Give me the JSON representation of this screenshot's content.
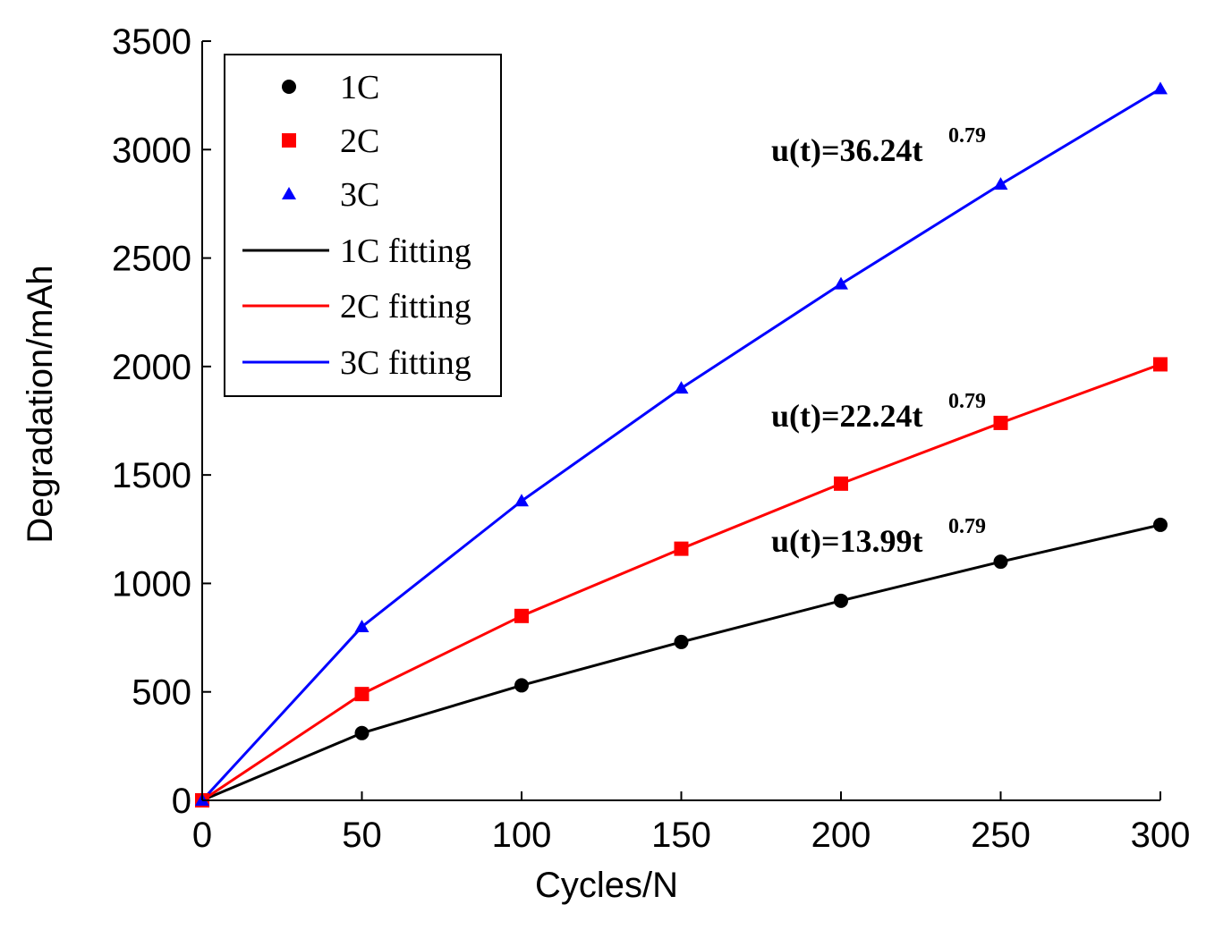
{
  "chart_data": {
    "type": "line",
    "title": "",
    "xlabel": "Cycles/N",
    "ylabel": "Degradation/mAh",
    "xlim": [
      0,
      300
    ],
    "ylim": [
      0,
      3500
    ],
    "x_ticks": [
      "0",
      "50",
      "100",
      "150",
      "200",
      "250",
      "300"
    ],
    "y_ticks": [
      "0",
      "500",
      "1000",
      "1500",
      "2000",
      "2500",
      "3000",
      "3500"
    ],
    "grid": false,
    "legend_position": "top-left",
    "series": [
      {
        "name": "1C",
        "marker": "circle",
        "color": "#000000",
        "x": [
          0,
          50,
          100,
          150,
          200,
          250,
          300
        ],
        "values": [
          0,
          310,
          530,
          730,
          920,
          1100,
          1270
        ]
      },
      {
        "name": "2C",
        "marker": "square",
        "color": "#ff0000",
        "x": [
          0,
          50,
          100,
          150,
          200,
          250,
          300
        ],
        "values": [
          0,
          490,
          850,
          1160,
          1460,
          1740,
          2010
        ]
      },
      {
        "name": "3C",
        "marker": "triangle",
        "color": "#0000ff",
        "x": [
          0,
          50,
          100,
          150,
          200,
          250,
          300
        ],
        "values": [
          0,
          800,
          1380,
          1900,
          2380,
          2840,
          3280
        ]
      }
    ],
    "fits": [
      {
        "name": "1C fitting",
        "color": "#000000",
        "coef": 13.99,
        "exponent": 0.79,
        "eq_prefix": "u(t)=13.99t",
        "eq_exp": "0.79"
      },
      {
        "name": "2C fitting",
        "color": "#ff0000",
        "coef": 22.24,
        "exponent": 0.79,
        "eq_prefix": "u(t)=22.24t",
        "eq_exp": "0.79"
      },
      {
        "name": "3C fitting",
        "color": "#0000ff",
        "coef": 36.24,
        "exponent": 0.79,
        "eq_prefix": "u(t)=36.24t",
        "eq_exp": "0.79"
      }
    ]
  }
}
